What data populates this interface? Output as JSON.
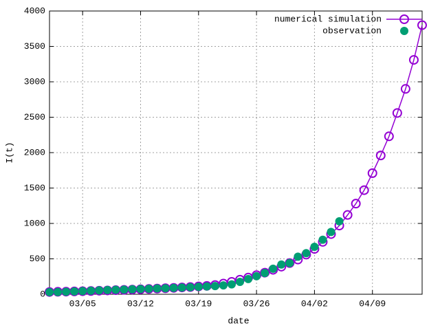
{
  "chart_data": {
    "type": "line",
    "xlabel": "date",
    "ylabel": "I(t)",
    "xlim": [
      "03/01",
      "04/15"
    ],
    "xticks": [
      "03/05",
      "03/12",
      "03/19",
      "03/26",
      "04/02",
      "04/09"
    ],
    "ylim": [
      0,
      4000
    ],
    "yticks": [
      0,
      500,
      1000,
      1500,
      2000,
      2500,
      3000,
      3500,
      4000
    ],
    "grid": true,
    "legend": "top-right",
    "series": [
      {
        "name": "numerical simulation",
        "color": "#9400d3",
        "marker": "open-circle",
        "line": true,
        "x": [
          "03/01",
          "03/02",
          "03/03",
          "03/04",
          "03/05",
          "03/06",
          "03/07",
          "03/08",
          "03/09",
          "03/10",
          "03/11",
          "03/12",
          "03/13",
          "03/14",
          "03/15",
          "03/16",
          "03/17",
          "03/18",
          "03/19",
          "03/20",
          "03/21",
          "03/22",
          "03/23",
          "03/24",
          "03/25",
          "03/26",
          "03/27",
          "03/28",
          "03/29",
          "03/30",
          "03/31",
          "04/01",
          "04/02",
          "04/03",
          "04/04",
          "04/05",
          "04/06",
          "04/07",
          "04/08",
          "04/09",
          "04/10",
          "04/11",
          "04/12",
          "04/13",
          "04/14",
          "04/15"
        ],
        "values": [
          32,
          35,
          37,
          40,
          43,
          46,
          50,
          54,
          58,
          62,
          66,
          70,
          75,
          80,
          85,
          90,
          96,
          102,
          110,
          118,
          130,
          150,
          175,
          205,
          235,
          270,
          305,
          345,
          390,
          440,
          490,
          560,
          640,
          740,
          850,
          970,
          1120,
          1280,
          1470,
          1710,
          1960,
          2230,
          2560,
          2900,
          3310,
          3800
        ]
      },
      {
        "name": "observation",
        "color": "#009e73",
        "marker": "filled-circle",
        "line": false,
        "x": [
          "03/01",
          "03/02",
          "03/03",
          "03/04",
          "03/05",
          "03/06",
          "03/07",
          "03/08",
          "03/09",
          "03/10",
          "03/11",
          "03/12",
          "03/13",
          "03/14",
          "03/15",
          "03/16",
          "03/17",
          "03/18",
          "03/19",
          "03/20",
          "03/21",
          "03/22",
          "03/23",
          "03/24",
          "03/25",
          "03/26",
          "03/27",
          "03/28",
          "03/29",
          "03/30",
          "03/31",
          "04/01",
          "04/02",
          "04/03",
          "04/04",
          "04/05"
        ],
        "values": [
          30,
          32,
          35,
          40,
          45,
          50,
          55,
          60,
          63,
          66,
          70,
          74,
          78,
          82,
          85,
          90,
          95,
          100,
          105,
          110,
          115,
          125,
          140,
          175,
          215,
          255,
          300,
          360,
          420,
          440,
          530,
          580,
          670,
          770,
          880,
          1030
        ]
      }
    ]
  }
}
